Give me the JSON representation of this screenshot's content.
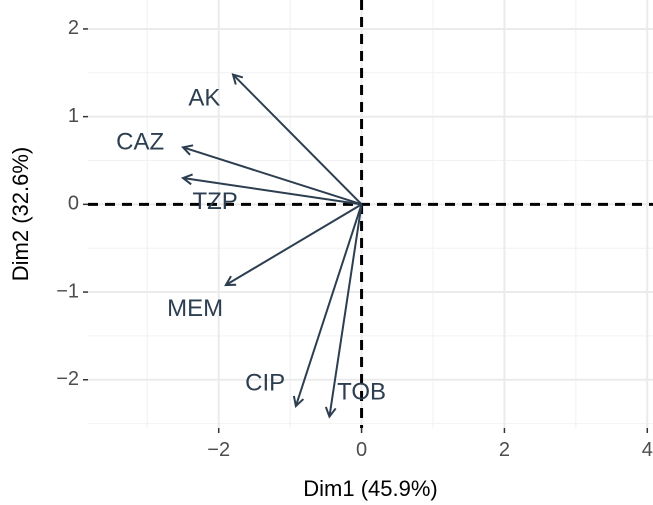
{
  "chart_data": {
    "type": "biplot",
    "xlabel": "Dim1 (45.9%)",
    "ylabel": "Dim2 (32.6%)",
    "xlim": [
      -3.83,
      4.08
    ],
    "ylim": [
      -2.55,
      2.33
    ],
    "x_ticks": [
      -2,
      0,
      2,
      4
    ],
    "x_tick_labels": [
      "−2",
      "0",
      "2",
      "4"
    ],
    "y_ticks": [
      -2,
      -1,
      0,
      1,
      2
    ],
    "y_tick_labels": [
      "−2",
      "−1",
      "0",
      "1",
      "2"
    ],
    "grid": true,
    "reference_lines": {
      "x": 0,
      "y": 0,
      "style": "dashed"
    },
    "arrow_color": "#2c3e50",
    "vectors": [
      {
        "name": "AK",
        "x": -1.8,
        "y": 1.48,
        "label_x": -2.2,
        "label_y": 1.2
      },
      {
        "name": "CAZ",
        "x": -2.5,
        "y": 0.65,
        "label_x": -3.1,
        "label_y": 0.7
      },
      {
        "name": "TZP",
        "x": -2.5,
        "y": 0.3,
        "label_x": -2.05,
        "label_y": 0.02
      },
      {
        "name": "MEM",
        "x": -1.9,
        "y": -0.92,
        "label_x": -2.33,
        "label_y": -1.2
      },
      {
        "name": "CIP",
        "x": -0.92,
        "y": -2.3,
        "label_x": -1.35,
        "label_y": -2.05
      },
      {
        "name": "TOB",
        "x": -0.45,
        "y": -2.42,
        "label_x": 0.0,
        "label_y": -2.15
      }
    ]
  }
}
